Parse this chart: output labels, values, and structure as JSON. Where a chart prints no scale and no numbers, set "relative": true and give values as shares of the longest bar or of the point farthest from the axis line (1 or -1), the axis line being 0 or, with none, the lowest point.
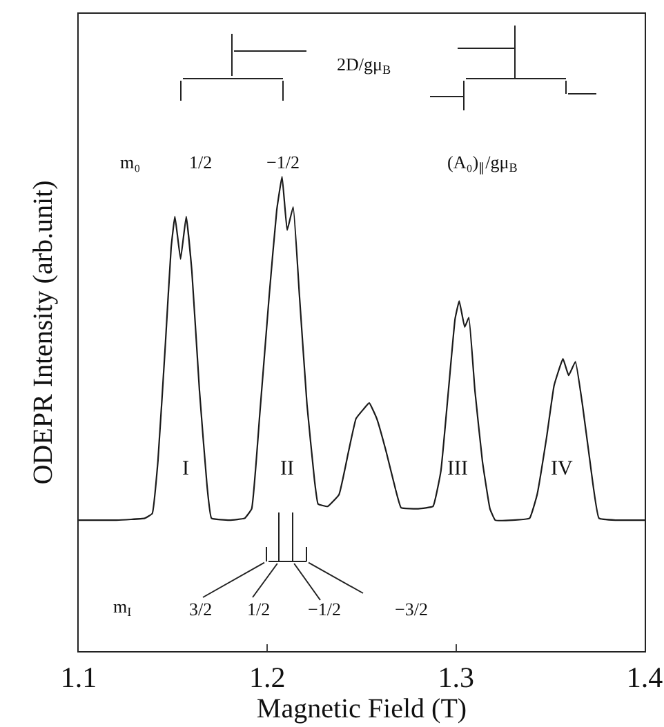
{
  "chart_data": {
    "type": "line",
    "xlabel": "Magnetic Field (T)",
    "ylabel": "ODEPR Intensity (arb.unit)",
    "relative": true,
    "xlim": [
      1.1,
      1.4
    ],
    "xticks": [
      1.1,
      1.2,
      1.3,
      1.4
    ],
    "x": [
      1.1,
      1.12,
      1.135,
      1.139,
      1.142,
      1.146,
      1.149,
      1.151,
      1.154,
      1.157,
      1.16,
      1.164,
      1.168,
      1.1704,
      1.18,
      1.188,
      1.1917,
      1.196,
      1.201,
      1.205,
      1.2078,
      1.2105,
      1.2137,
      1.217,
      1.221,
      1.225,
      1.2269,
      1.232,
      1.238,
      1.243,
      1.247,
      1.251,
      1.254,
      1.258,
      1.263,
      1.268,
      1.2709,
      1.28,
      1.2878,
      1.292,
      1.296,
      1.2995,
      1.3017,
      1.3046,
      1.3068,
      1.31,
      1.314,
      1.318,
      1.3208,
      1.33,
      1.339,
      1.343,
      1.348,
      1.352,
      1.3567,
      1.3597,
      1.3633,
      1.367,
      1.371,
      1.3758,
      1.385,
      1.4
    ],
    "series": [
      {
        "color": "#1a1a1a",
        "values": [
          0.276,
          0.276,
          0.28,
          0.29,
          0.4,
          0.65,
          0.85,
          0.916,
          0.826,
          0.916,
          0.8,
          0.55,
          0.35,
          0.28,
          0.276,
          0.28,
          0.3,
          0.5,
          0.75,
          0.93,
          1.0,
          0.887,
          0.936,
          0.75,
          0.52,
          0.36,
          0.31,
          0.305,
          0.33,
          0.42,
          0.49,
          0.51,
          0.523,
          0.49,
          0.42,
          0.34,
          0.302,
          0.3,
          0.305,
          0.38,
          0.55,
          0.7,
          0.738,
          0.683,
          0.703,
          0.55,
          0.4,
          0.3,
          0.276,
          0.276,
          0.28,
          0.33,
          0.45,
          0.56,
          0.616,
          0.581,
          0.61,
          0.52,
          0.4,
          0.28,
          0.276,
          0.276
        ]
      }
    ],
    "annotations": [
      "2D/gμ$_{B}$",
      "m₀",
      "1/2",
      "−1/2",
      "(A₀)$_{∥}$/gμ$_{B}$",
      "I",
      "II",
      "III",
      "IV",
      "m$_{I}$",
      "3/2",
      "1/2",
      "−1/2",
      "−3/2"
    ]
  }
}
